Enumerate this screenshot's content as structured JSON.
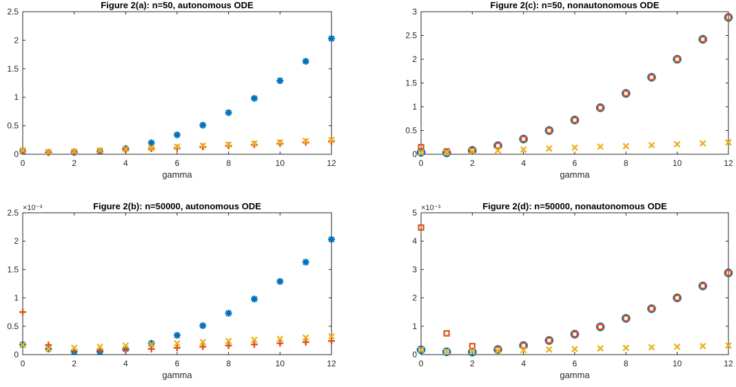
{
  "colors": {
    "series1": "#0072BD",
    "series2": "#D95319",
    "series3": "#EDB120",
    "axis": "#262626",
    "background": "#ffffff"
  },
  "chart_data": [
    {
      "type": "scatter",
      "title": "Figure 2(a): n=50, autonomous ODE",
      "xlabel": "gamma",
      "ylabel": "",
      "xlim": [
        0,
        12
      ],
      "ylim": [
        0,
        2.5
      ],
      "xticks": [
        0,
        2,
        4,
        6,
        8,
        10,
        12
      ],
      "yticks": [
        0,
        0.5,
        1,
        1.5,
        2,
        2.5
      ],
      "ytick_labels": [
        "0",
        "0.5",
        "1",
        "1.5",
        "2",
        "2.5"
      ],
      "exponent_label": "",
      "x": [
        0,
        1,
        2,
        3,
        4,
        5,
        6,
        7,
        8,
        9,
        10,
        11,
        12
      ],
      "series": [
        {
          "marker": "asterisk",
          "color": "#0072BD",
          "values": [
            0.05,
            0.03,
            0.03,
            0.05,
            0.1,
            0.2,
            0.34,
            0.51,
            0.73,
            0.98,
            1.29,
            1.63,
            2.03
          ]
        },
        {
          "marker": "plus",
          "color": "#D95319",
          "values": [
            0.05,
            0.03,
            0.04,
            0.05,
            0.08,
            0.1,
            0.11,
            0.13,
            0.15,
            0.17,
            0.19,
            0.21,
            0.23
          ]
        },
        {
          "marker": "x",
          "color": "#EDB120",
          "values": [
            0.07,
            0.04,
            0.05,
            0.07,
            0.09,
            0.11,
            0.13,
            0.15,
            0.17,
            0.19,
            0.21,
            0.23,
            0.25
          ]
        }
      ]
    },
    {
      "type": "scatter",
      "title": "Figure 2(c): n=50, nonautonomous ODE",
      "xlabel": "gamma",
      "ylabel": "",
      "xlim": [
        0,
        12
      ],
      "ylim": [
        0,
        3
      ],
      "xticks": [
        0,
        2,
        4,
        6,
        8,
        10,
        12
      ],
      "yticks": [
        0,
        0.5,
        1,
        1.5,
        2,
        2.5,
        3
      ],
      "ytick_labels": [
        "0",
        "0.5",
        "1",
        "1.5",
        "2",
        "2.5",
        "3"
      ],
      "exponent_label": "",
      "x": [
        0,
        1,
        2,
        3,
        4,
        5,
        6,
        7,
        8,
        9,
        10,
        11,
        12
      ],
      "series": [
        {
          "marker": "circle",
          "color": "#0072BD",
          "values": [
            0.04,
            0.03,
            0.08,
            0.18,
            0.32,
            0.5,
            0.72,
            0.98,
            1.28,
            1.62,
            2.0,
            2.42,
            2.88
          ]
        },
        {
          "marker": "square",
          "color": "#D95319",
          "values": [
            0.15,
            0.06,
            0.08,
            0.18,
            0.32,
            0.5,
            0.72,
            0.98,
            1.28,
            1.62,
            2.0,
            2.42,
            2.88
          ]
        },
        {
          "marker": "x",
          "color": "#EDB120",
          "values": [
            0.03,
            0.04,
            0.06,
            0.08,
            0.1,
            0.12,
            0.14,
            0.16,
            0.17,
            0.19,
            0.21,
            0.23,
            0.25
          ]
        }
      ]
    },
    {
      "type": "scatter",
      "title": "Figure 2(b): n=50000, autonomous ODE",
      "xlabel": "gamma",
      "ylabel": "",
      "xlim": [
        0,
        12
      ],
      "ylim": [
        0,
        2.5
      ],
      "xticks": [
        0,
        2,
        4,
        6,
        8,
        10,
        12
      ],
      "yticks": [
        0,
        0.5,
        1,
        1.5,
        2,
        2.5
      ],
      "ytick_labels": [
        "0",
        "0.5",
        "1",
        "1.5",
        "2",
        "2.5"
      ],
      "exponent_label": "×10⁻³",
      "x": [
        0,
        1,
        2,
        3,
        4,
        5,
        6,
        7,
        8,
        9,
        10,
        11,
        12
      ],
      "series": [
        {
          "marker": "asterisk",
          "color": "#0072BD",
          "values": [
            0.18,
            0.1,
            0.05,
            0.05,
            0.1,
            0.2,
            0.34,
            0.51,
            0.73,
            0.98,
            1.29,
            1.63,
            2.03
          ]
        },
        {
          "marker": "plus",
          "color": "#D95319",
          "values": [
            0.75,
            0.17,
            0.08,
            0.08,
            0.08,
            0.1,
            0.12,
            0.14,
            0.16,
            0.18,
            0.2,
            0.22,
            0.24
          ]
        },
        {
          "marker": "x",
          "color": "#EDB120",
          "values": [
            0.17,
            0.1,
            0.12,
            0.14,
            0.16,
            0.18,
            0.2,
            0.22,
            0.24,
            0.26,
            0.28,
            0.3,
            0.32
          ]
        }
      ]
    },
    {
      "type": "scatter",
      "title": "Figure 2(d): n=50000, nonautonomous ODE",
      "xlabel": "gamma",
      "ylabel": "",
      "xlim": [
        0,
        12
      ],
      "ylim": [
        0,
        5
      ],
      "xticks": [
        0,
        2,
        4,
        6,
        8,
        10,
        12
      ],
      "yticks": [
        0,
        1,
        2,
        3,
        4,
        5
      ],
      "ytick_labels": [
        "0",
        "1",
        "2",
        "3",
        "4",
        "5"
      ],
      "exponent_label": "×10⁻³",
      "x": [
        0,
        1,
        2,
        3,
        4,
        5,
        6,
        7,
        8,
        9,
        10,
        11,
        12
      ],
      "series": [
        {
          "marker": "circle",
          "color": "#0072BD",
          "values": [
            0.17,
            0.1,
            0.09,
            0.18,
            0.32,
            0.5,
            0.72,
            0.98,
            1.28,
            1.62,
            2.0,
            2.42,
            2.88
          ]
        },
        {
          "marker": "square",
          "color": "#D95319",
          "values": [
            4.48,
            0.75,
            0.3,
            0.18,
            0.32,
            0.5,
            0.72,
            0.98,
            1.28,
            1.62,
            2.0,
            2.42,
            2.88
          ]
        },
        {
          "marker": "x",
          "color": "#EDB120",
          "values": [
            0.17,
            0.1,
            0.12,
            0.14,
            0.16,
            0.18,
            0.2,
            0.22,
            0.24,
            0.26,
            0.28,
            0.3,
            0.32
          ]
        }
      ]
    }
  ]
}
